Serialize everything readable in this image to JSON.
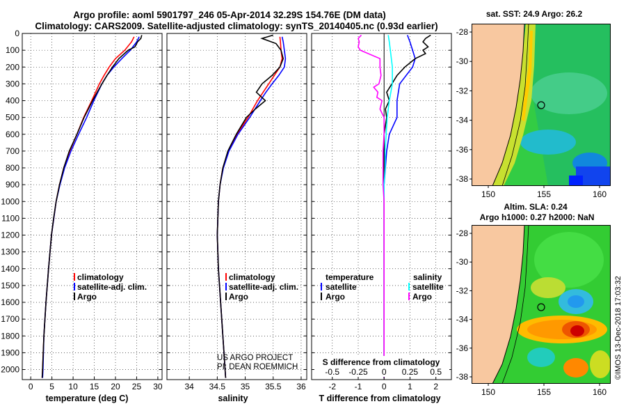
{
  "header": {
    "line1": "Argo profile: aoml 5901797_246 05-Apr-2014 32.29S 154.76E (DM data)",
    "line2": "Climatology: CARS2009. Satellite-adjusted climatology: synTS_20140405.nc (0.93d earlier)"
  },
  "colors": {
    "clim": "#ff0000",
    "sat": "#0000ff",
    "argo": "#000000",
    "sat_s": "#00ffff",
    "argo_s": "#ff00ff",
    "land": "#f8c8a0"
  },
  "depth_axis": {
    "ticks": [
      0,
      100,
      200,
      300,
      400,
      500,
      600,
      700,
      800,
      900,
      1000,
      1100,
      1200,
      1300,
      1400,
      1500,
      1600,
      1700,
      1800,
      1900,
      2000
    ],
    "range": [
      0,
      2060
    ]
  },
  "chart_data": [
    {
      "type": "line",
      "id": "temperature",
      "xlabel": "temperature (deg C)",
      "ylabel": "",
      "xlim": [
        -2,
        31
      ],
      "ylim": [
        2060,
        0
      ],
      "xticks": [
        0,
        5,
        10,
        15,
        20,
        25,
        30
      ],
      "legend": [
        "climatology",
        "satellite-adj. clim.",
        "Argo"
      ],
      "legend_position": "lower-center",
      "series": [
        {
          "name": "climatology",
          "color": "#ff0000",
          "depth": [
            20,
            50,
            100,
            150,
            200,
            250,
            300,
            400,
            500,
            600,
            700,
            800,
            900,
            1000,
            1200,
            1400,
            1600,
            1800,
            2000,
            2050
          ],
          "values": [
            24.4,
            23.8,
            22.2,
            20.0,
            18.5,
            17.3,
            16.2,
            14.4,
            12.5,
            10.9,
            9.2,
            7.8,
            6.8,
            6.0,
            4.9,
            4.2,
            3.6,
            3.1,
            2.8,
            2.7
          ]
        },
        {
          "name": "satellite-adj. clim.",
          "color": "#0000ff",
          "depth": [
            20,
            50,
            100,
            150,
            200,
            250,
            300,
            400,
            500,
            600,
            700,
            800,
            900,
            1000,
            1200,
            1400,
            1600,
            1800,
            2000,
            2050
          ],
          "values": [
            25.6,
            25.0,
            23.5,
            21.5,
            19.6,
            18.0,
            16.8,
            14.9,
            13.2,
            11.3,
            9.5,
            8.0,
            6.9,
            6.0,
            4.9,
            4.2,
            3.6,
            3.1,
            2.9,
            2.8
          ]
        },
        {
          "name": "Argo",
          "color": "#000000",
          "depth": [
            10,
            30,
            50,
            80,
            100,
            150,
            200,
            250,
            300,
            350,
            400,
            500,
            600,
            700,
            800,
            900,
            1000,
            1100,
            1200,
            1400,
            1600,
            1800,
            2000,
            2050
          ],
          "values": [
            26.2,
            26.0,
            25.2,
            24.6,
            23.0,
            20.8,
            19.3,
            18.0,
            16.8,
            15.7,
            14.6,
            12.6,
            10.9,
            9.1,
            7.8,
            6.8,
            6.0,
            5.4,
            4.9,
            4.2,
            3.6,
            3.1,
            2.8,
            2.7
          ]
        }
      ]
    },
    {
      "type": "line",
      "id": "salinity",
      "xlabel": "salinity",
      "ylabel": "",
      "xlim": [
        33.6,
        36.1
      ],
      "ylim": [
        2060,
        0
      ],
      "xticks": [
        34,
        34.5,
        35,
        35.5,
        36
      ],
      "legend": [
        "climatology",
        "satellite-adj. clim.",
        "Argo"
      ],
      "legend_position": "lower-center",
      "series": [
        {
          "name": "climatology",
          "color": "#ff0000",
          "depth": [
            20,
            50,
            100,
            150,
            200,
            250,
            300,
            350,
            400,
            500,
            600,
            700,
            800,
            900,
            1000,
            1200,
            1400,
            1600,
            1800,
            2000,
            2050
          ],
          "values": [
            35.62,
            35.63,
            35.64,
            35.66,
            35.62,
            35.52,
            35.42,
            35.32,
            35.22,
            35.05,
            34.85,
            34.7,
            34.6,
            34.55,
            34.52,
            34.5,
            34.52,
            34.56,
            34.6,
            34.64,
            34.65
          ]
        },
        {
          "name": "satellite-adj. clim.",
          "color": "#0000ff",
          "depth": [
            20,
            50,
            100,
            150,
            200,
            250,
            300,
            350,
            400,
            500,
            600,
            700,
            800,
            900,
            1000,
            1200,
            1400,
            1600,
            1800,
            2000,
            2050
          ],
          "values": [
            35.66,
            35.68,
            35.7,
            35.72,
            35.7,
            35.6,
            35.48,
            35.37,
            35.27,
            35.08,
            34.87,
            34.71,
            34.61,
            34.55,
            34.52,
            34.5,
            34.52,
            34.56,
            34.6,
            34.64,
            34.65
          ]
        },
        {
          "name": "Argo",
          "color": "#000000",
          "depth": [
            10,
            30,
            60,
            100,
            150,
            200,
            250,
            300,
            350,
            400,
            450,
            500,
            600,
            700,
            800,
            900,
            1000,
            1200,
            1400,
            1600,
            1800,
            2000,
            2050
          ],
          "values": [
            35.5,
            35.3,
            35.55,
            35.64,
            35.68,
            35.62,
            35.48,
            35.3,
            35.2,
            35.36,
            35.18,
            35.02,
            34.84,
            34.69,
            34.6,
            34.55,
            34.52,
            34.5,
            34.52,
            34.56,
            34.6,
            34.64,
            34.65
          ]
        }
      ],
      "annotations": [
        "US ARGO PROJECT",
        "PI: DEAN ROEMMICH"
      ]
    },
    {
      "type": "line",
      "id": "difference",
      "xlabel": "T difference from climatology",
      "ylabel": "",
      "xlim": [
        -2.8,
        2.6
      ],
      "ylim": [
        2060,
        0
      ],
      "xticks": [
        -2,
        -1,
        0,
        1,
        2
      ],
      "top_xlabel": "S difference from climatology",
      "top_xticks": [
        "-0.5",
        "-0.25",
        "0",
        "0.25",
        "0.5"
      ],
      "legend_left_title": "temperature",
      "legend_right_title": "salinity",
      "legend_left": [
        "satellite",
        "Argo"
      ],
      "legend_right": [
        "satellite",
        "Argo"
      ],
      "series": [
        {
          "name": "temperature satellite",
          "color": "#0000ff",
          "depth": [
            10,
            50,
            100,
            150,
            200,
            300,
            400,
            500,
            600,
            700,
            800,
            900,
            1000,
            1200,
            1400,
            1600,
            1800,
            2000,
            2050
          ],
          "values": [
            0.9,
            1.0,
            1.1,
            1.2,
            1.1,
            0.6,
            0.5,
            0.5,
            0.2,
            0.1,
            0.05,
            0.0,
            0.0,
            0.0,
            0.0,
            0.0,
            0.0,
            0.0,
            0.0
          ]
        },
        {
          "name": "temperature Argo",
          "color": "#000000",
          "depth": [
            10,
            30,
            50,
            80,
            100,
            120,
            150,
            200,
            250,
            300,
            350,
            400,
            450,
            500,
            600,
            700,
            800,
            900,
            1000,
            1200,
            1400,
            1600,
            1800,
            2000,
            2050
          ],
          "values": [
            1.8,
            1.6,
            1.5,
            1.7,
            1.5,
            1.6,
            1.2,
            0.8,
            0.5,
            0.3,
            0.1,
            0.2,
            0.05,
            0.1,
            0.0,
            0.0,
            0.0,
            0.0,
            0.0,
            0.0,
            0.0,
            0.0,
            0.0,
            0.0,
            0.0
          ]
        },
        {
          "name": "salinity satellite",
          "color": "#00ffff",
          "depth": [
            10,
            50,
            100,
            200,
            300,
            400,
            500,
            600,
            700,
            800,
            900,
            1000,
            1200,
            1400,
            1600,
            1800,
            2000,
            2050
          ],
          "values": [
            0.04,
            0.05,
            0.06,
            0.08,
            0.08,
            0.05,
            0.03,
            0.02,
            0.01,
            0.01,
            0.0,
            0.0,
            0.0,
            0.0,
            0.0,
            0.0,
            0.0,
            0.0
          ]
        },
        {
          "name": "salinity Argo",
          "color": "#ff00ff",
          "depth": [
            10,
            30,
            50,
            80,
            100,
            150,
            200,
            250,
            300,
            320,
            350,
            380,
            400,
            450,
            500,
            600,
            700,
            800,
            900,
            1000,
            1100,
            1200,
            1400,
            1600,
            1800,
            2000,
            2050
          ],
          "values": [
            -0.22,
            -0.25,
            -0.24,
            -0.25,
            -0.23,
            -0.04,
            -0.04,
            -0.03,
            -0.05,
            -0.1,
            -0.06,
            -0.07,
            -0.02,
            -0.04,
            0.0,
            0.0,
            -0.01,
            -0.01,
            -0.01,
            0.0,
            0.0,
            0.0,
            0.0,
            0.0,
            0.0,
            0.0,
            0.0
          ]
        }
      ]
    }
  ],
  "maps": [
    {
      "id": "sst",
      "title": "sat. SST: 24.9 Argo: 26.2",
      "yticks": [
        "-28",
        "-30",
        "-32",
        "-34",
        "-36",
        "-38"
      ],
      "xticks": [
        "150",
        "155",
        "160"
      ]
    },
    {
      "id": "sla",
      "title1": "Altim. SLA: 0.24",
      "title2": "Argo h1000: 0.27 h2000: NaN",
      "yticks": [
        "-28",
        "-30",
        "-32",
        "-34",
        "-36",
        "-38"
      ],
      "xticks": [
        "150",
        "155",
        "160"
      ]
    }
  ],
  "credit": "©IMOS 13-Dec-2018 17:03:32"
}
